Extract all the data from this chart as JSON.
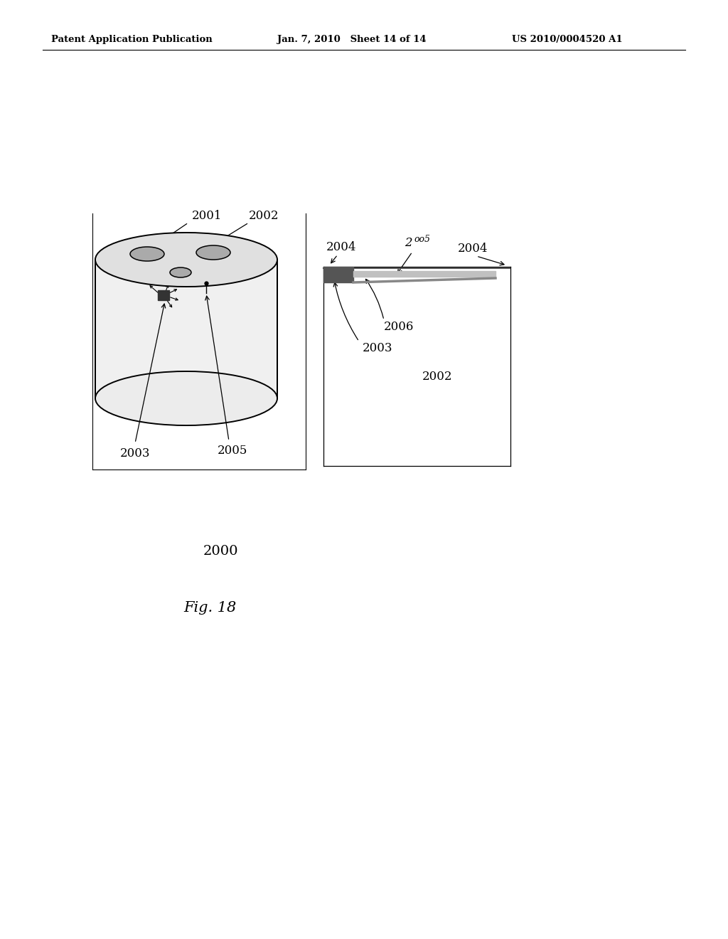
{
  "bg_color": "#ffffff",
  "header_left": "Patent Application Publication",
  "header_mid": "Jan. 7, 2010   Sheet 14 of 14",
  "header_right": "US 2010/0004520 A1",
  "fig_label": "Fig. 18",
  "fig_number": "2000",
  "header_font_size": 9.5,
  "body_font_size": 12,
  "fig_label_font_size": 15
}
